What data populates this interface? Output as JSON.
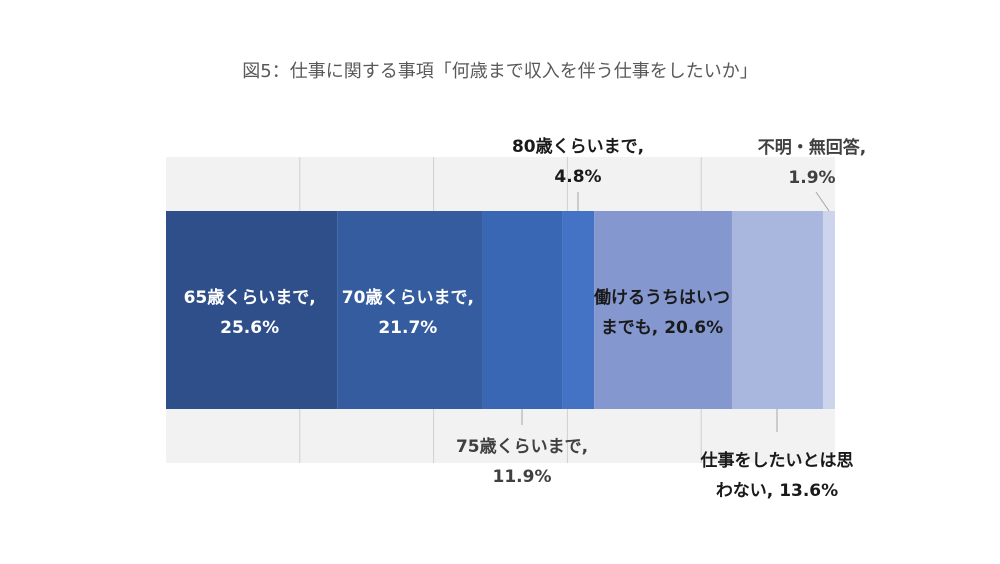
{
  "chart_data": {
    "type": "bar",
    "orientation": "horizontal-stacked-100",
    "title": "図5：仕事に関する事項「何歳まで収入を伴う仕事をしたいか」",
    "xlim": [
      0,
      100
    ],
    "grid": true,
    "segments": [
      {
        "name": "65歳くらいまで",
        "value": 25.6,
        "color": "#2f4f8a",
        "label_lines": [
          "65歳くらいまで,",
          "25.6%"
        ]
      },
      {
        "name": "70歳くらいまで",
        "value": 21.7,
        "color": "#345c9e",
        "label_lines": [
          "70歳くらいまで,",
          "21.7%"
        ]
      },
      {
        "name": "75歳くらいまで",
        "value": 11.9,
        "color": "#3a67b3",
        "label_lines": [
          "75歳くらいまで,",
          "11.9%"
        ]
      },
      {
        "name": "80歳くらいまで",
        "value": 4.8,
        "color": "#4472c4",
        "label_lines": [
          "80歳くらいまで,",
          "4.8%"
        ]
      },
      {
        "name": "働けるうちはいつまでも",
        "value": 20.6,
        "color": "#8497cf",
        "label_lines": [
          "働けるうちはいつ",
          "までも, 20.6%"
        ]
      },
      {
        "name": "仕事をしたいとは思わない",
        "value": 13.6,
        "color": "#a9b7de",
        "label_lines": [
          "仕事をしたいとは思",
          "わない, 13.6%"
        ]
      },
      {
        "name": "不明・無回答",
        "value": 1.9,
        "color": "#cdd5ec",
        "label_lines": [
          "不明・無回答,",
          "1.9%"
        ]
      }
    ]
  }
}
